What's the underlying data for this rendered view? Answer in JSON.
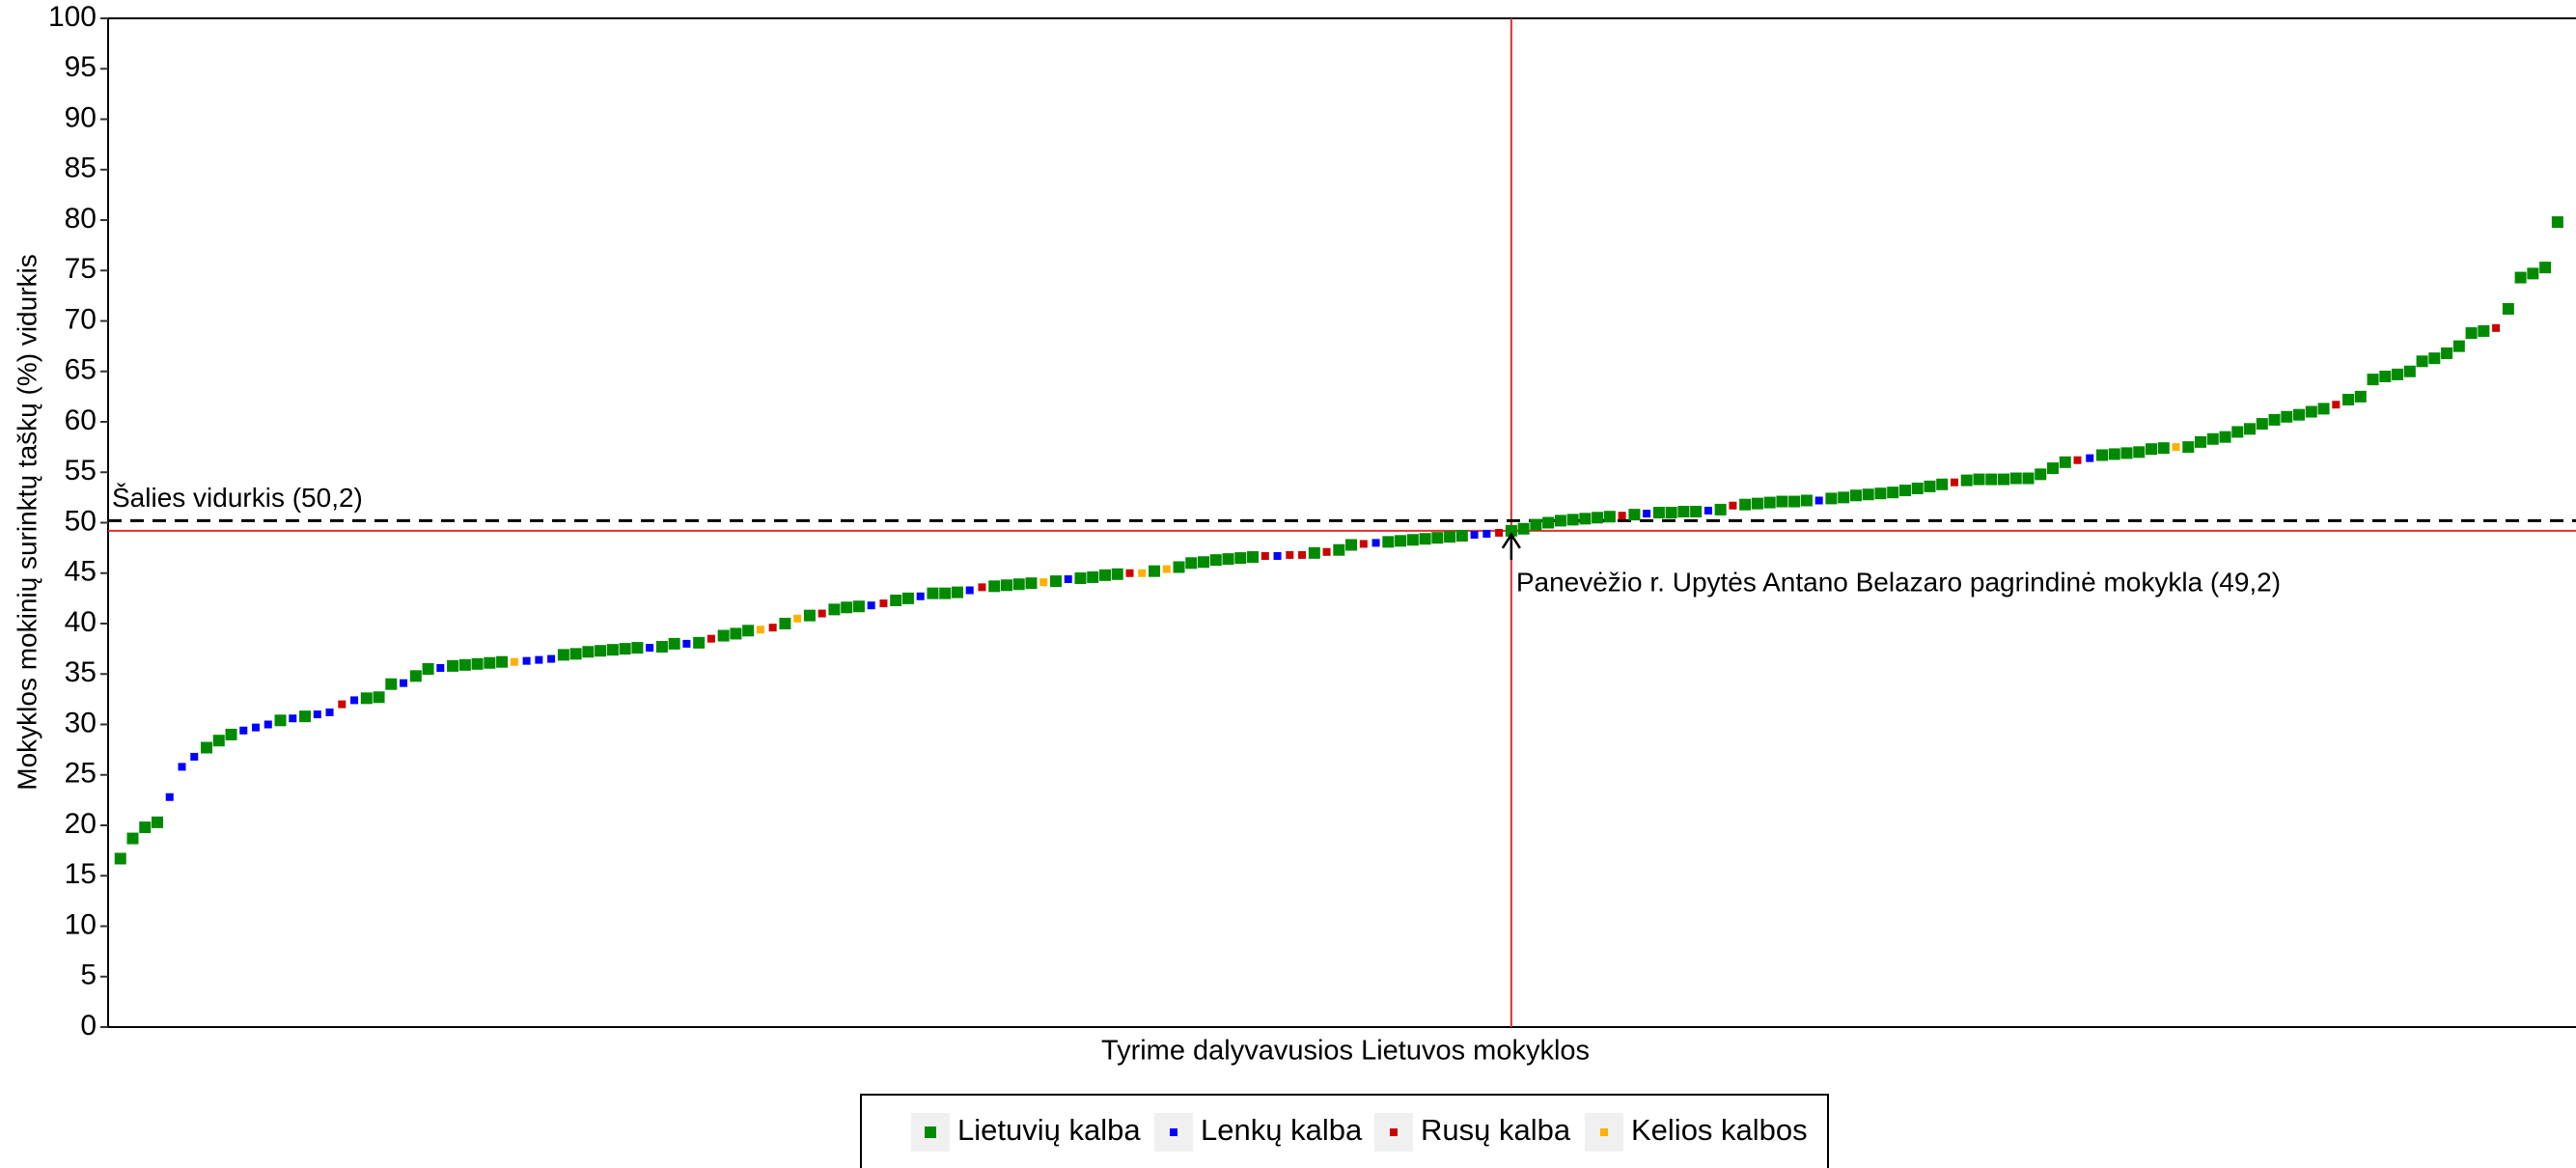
{
  "chart_data": {
    "type": "scatter",
    "y_label": "Mokyklos mokinių surinktų taškų (%) vidurkis",
    "x_label": "Tyrime dalyvavusios Lietuvos mokyklos",
    "xlim": [
      0,
      200.5
    ],
    "ylim": [
      0,
      100
    ],
    "yticks": [
      0,
      5,
      10,
      15,
      20,
      25,
      30,
      35,
      40,
      45,
      50,
      55,
      60,
      65,
      70,
      75,
      80,
      85,
      90,
      95,
      100
    ],
    "legend": "bottom",
    "series": [
      {
        "name": "Lietuvių kalba",
        "color": "#008a00",
        "x": [
          1,
          2,
          3,
          4,
          8,
          9,
          10,
          14,
          16,
          21,
          22,
          23,
          25,
          26,
          28,
          29,
          30,
          31,
          32,
          37,
          38,
          39,
          40,
          41,
          42,
          43,
          45,
          46,
          48,
          50,
          51,
          52,
          55,
          57,
          59,
          60,
          61,
          64,
          65,
          67,
          68,
          69,
          72,
          73,
          74,
          75,
          77,
          79,
          80,
          81,
          82,
          85,
          87,
          88,
          89,
          90,
          91,
          92,
          93,
          98,
          100,
          101,
          104,
          105,
          106,
          107,
          108,
          109,
          110,
          114,
          115,
          116,
          117,
          118,
          119,
          120,
          121,
          122,
          124,
          126,
          127,
          128,
          129,
          131,
          133,
          134,
          135,
          136,
          137,
          138,
          140,
          141,
          142,
          143,
          144,
          145,
          146,
          147,
          148,
          149,
          151,
          152,
          153,
          154,
          155,
          156,
          157,
          158,
          159,
          162,
          163,
          164,
          165,
          166,
          167,
          169,
          170,
          171,
          172,
          173,
          174,
          175,
          176,
          177,
          178,
          179,
          180,
          182,
          183,
          184,
          185,
          186,
          187,
          188,
          189,
          190,
          191,
          192,
          193,
          195,
          196,
          197,
          198,
          199
        ],
        "values": [
          16.7,
          18.7,
          19.8,
          20.3,
          27.7,
          28.4,
          29.0,
          30.4,
          30.8,
          32.6,
          32.7,
          34.0,
          34.8,
          35.5,
          35.8,
          35.9,
          36.0,
          36.1,
          36.2,
          36.9,
          37.0,
          37.2,
          37.3,
          37.4,
          37.5,
          37.6,
          37.7,
          38.0,
          38.1,
          38.8,
          39.0,
          39.3,
          40.0,
          40.8,
          41.4,
          41.6,
          41.7,
          42.3,
          42.5,
          43.0,
          43.0,
          43.1,
          43.7,
          43.8,
          43.9,
          44.0,
          44.2,
          44.5,
          44.6,
          44.8,
          44.9,
          45.2,
          45.6,
          46.0,
          46.1,
          46.3,
          46.4,
          46.5,
          46.6,
          47.0,
          47.3,
          47.8,
          48.1,
          48.2,
          48.3,
          48.4,
          48.5,
          48.6,
          48.7,
          49.2,
          49.4,
          49.8,
          50.0,
          50.2,
          50.3,
          50.4,
          50.5,
          50.6,
          50.8,
          51.0,
          51.0,
          51.1,
          51.1,
          51.3,
          51.8,
          51.9,
          52.0,
          52.1,
          52.1,
          52.2,
          52.4,
          52.5,
          52.7,
          52.8,
          52.9,
          53.0,
          53.2,
          53.4,
          53.6,
          53.8,
          54.2,
          54.3,
          54.3,
          54.3,
          54.4,
          54.4,
          54.8,
          55.4,
          56.0,
          56.7,
          56.8,
          56.9,
          57.0,
          57.3,
          57.4,
          57.5,
          58.0,
          58.3,
          58.5,
          59.0,
          59.3,
          59.8,
          60.2,
          60.5,
          60.7,
          61.0,
          61.3,
          62.2,
          62.5,
          64.2,
          64.5,
          64.7,
          65.0,
          66.0,
          66.3,
          66.8,
          67.5,
          68.8,
          69.0,
          71.2,
          74.3,
          74.7,
          75.3,
          79.8
        ]
      },
      {
        "name": "Lenkų kalba",
        "color": "#0000ff",
        "x": [
          5,
          6,
          7,
          11,
          12,
          13,
          15,
          17,
          18,
          20,
          24,
          27,
          34,
          35,
          36,
          44,
          47,
          62,
          66,
          70,
          78,
          95,
          103,
          111,
          112,
          125,
          130,
          139,
          161
        ],
        "values": [
          22.8,
          25.8,
          26.8,
          29.4,
          29.7,
          30.0,
          30.6,
          31.0,
          31.2,
          32.4,
          34.1,
          35.6,
          36.3,
          36.4,
          36.5,
          37.6,
          38.0,
          41.8,
          42.7,
          43.3,
          44.4,
          46.7,
          48.0,
          48.8,
          48.9,
          50.9,
          51.2,
          52.2,
          56.4
        ]
      },
      {
        "name": "Rusų kalba",
        "color": "#cc0000",
        "x": [
          19,
          49,
          54,
          58,
          63,
          71,
          83,
          94,
          96,
          97,
          99,
          102,
          113,
          123,
          132,
          150,
          160,
          181,
          194
        ],
        "values": [
          32.0,
          38.5,
          39.6,
          41.0,
          42.0,
          43.6,
          45.0,
          46.7,
          46.8,
          46.8,
          47.1,
          47.9,
          49.0,
          50.7,
          51.7,
          54.0,
          56.2,
          61.7,
          69.3
        ]
      },
      {
        "name": "Kelios kalbos",
        "color": "#ffb000",
        "x": [
          33,
          53,
          56,
          76,
          84,
          86,
          168
        ],
        "values": [
          36.2,
          39.4,
          40.5,
          44.1,
          45.0,
          45.4,
          57.5
        ]
      }
    ],
    "national_mean": {
      "value": 50.2,
      "label": "Šalies vidurkis (50,2)"
    },
    "highlight": {
      "x": 114,
      "y": 49.2,
      "label": "Panevėžio r. Upytės Antano Belazaro pagrindinė mokykla (49,2)"
    }
  }
}
